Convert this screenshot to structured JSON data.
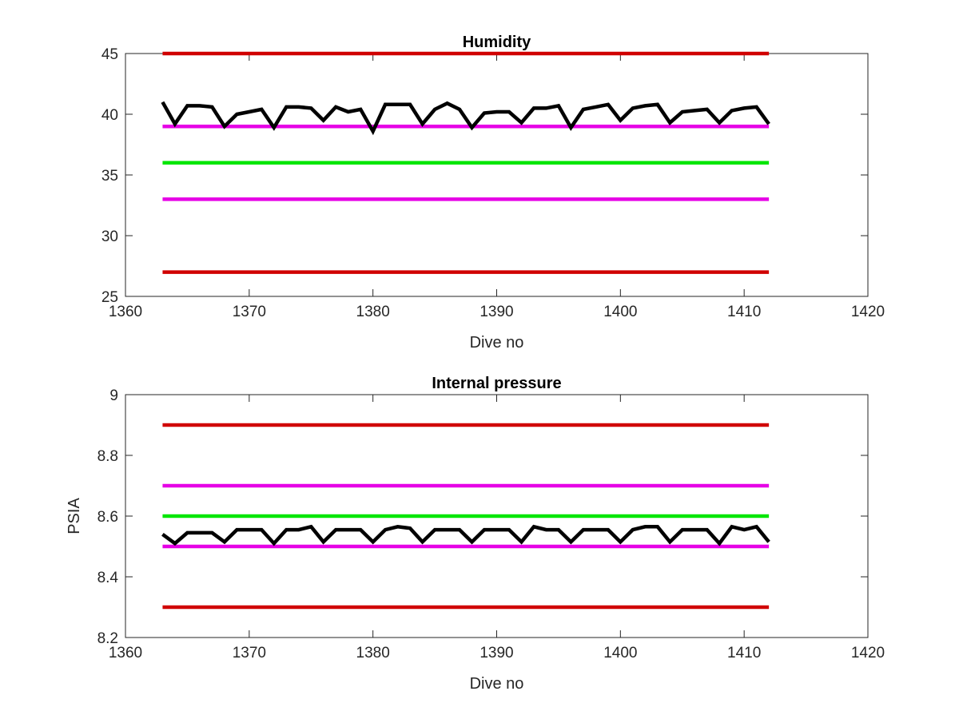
{
  "chart_data": [
    {
      "type": "line",
      "title": "Humidity",
      "xlabel": "Dive no",
      "ylabel": "",
      "xlim": [
        1360,
        1420
      ],
      "ylim": [
        25,
        45
      ],
      "xticks": [
        1360,
        1370,
        1380,
        1390,
        1400,
        1410,
        1420
      ],
      "yticks": [
        25,
        30,
        35,
        40,
        45
      ],
      "xtick_labels": [
        "1360",
        "1370",
        "1380",
        "1390",
        "1400",
        "1410",
        "1420"
      ],
      "ytick_labels": [
        "25",
        "30",
        "35",
        "40",
        "45"
      ],
      "grid": false,
      "reference_lines": [
        {
          "y": 45,
          "x": [
            1363,
            1412
          ],
          "color": "#d00000"
        },
        {
          "y": 39,
          "x": [
            1363,
            1412
          ],
          "color": "#e600e6"
        },
        {
          "y": 36,
          "x": [
            1363,
            1412
          ],
          "color": "#00e600"
        },
        {
          "y": 33,
          "x": [
            1363,
            1412
          ],
          "color": "#e600e6"
        },
        {
          "y": 27,
          "x": [
            1363,
            1412
          ],
          "color": "#d00000"
        }
      ],
      "series": [
        {
          "color": "#000000",
          "x": [
            1363,
            1364,
            1365,
            1366,
            1367,
            1368,
            1369,
            1370,
            1371,
            1372,
            1373,
            1374,
            1375,
            1376,
            1377,
            1378,
            1379,
            1380,
            1381,
            1382,
            1383,
            1384,
            1385,
            1386,
            1387,
            1388,
            1389,
            1390,
            1391,
            1392,
            1393,
            1394,
            1395,
            1396,
            1397,
            1398,
            1399,
            1400,
            1401,
            1402,
            1403,
            1404,
            1405,
            1406,
            1407,
            1408,
            1409,
            1410,
            1411,
            1412
          ],
          "y": [
            41.0,
            39.2,
            40.7,
            40.7,
            40.6,
            39.0,
            40.0,
            40.2,
            40.4,
            38.9,
            40.6,
            40.6,
            40.5,
            39.5,
            40.6,
            40.2,
            40.4,
            38.6,
            40.8,
            40.8,
            40.8,
            39.2,
            40.4,
            40.9,
            40.4,
            38.9,
            40.1,
            40.2,
            40.2,
            39.3,
            40.5,
            40.5,
            40.7,
            38.9,
            40.4,
            40.6,
            40.8,
            39.5,
            40.5,
            40.7,
            40.8,
            39.3,
            40.2,
            40.3,
            40.4,
            39.3,
            40.3,
            40.5,
            40.6,
            39.2
          ]
        }
      ]
    },
    {
      "type": "line",
      "title": "Internal pressure",
      "xlabel": "Dive no",
      "ylabel": "PSIA",
      "xlim": [
        1360,
        1420
      ],
      "ylim": [
        8.2,
        9.0
      ],
      "xticks": [
        1360,
        1370,
        1380,
        1390,
        1400,
        1410,
        1420
      ],
      "yticks": [
        8.2,
        8.4,
        8.6,
        8.8,
        9.0
      ],
      "xtick_labels": [
        "1360",
        "1370",
        "1380",
        "1390",
        "1400",
        "1410",
        "1420"
      ],
      "ytick_labels": [
        "8.2",
        "8.4",
        "8.6",
        "8.8",
        "9"
      ],
      "grid": false,
      "reference_lines": [
        {
          "y": 8.9,
          "x": [
            1363,
            1412
          ],
          "color": "#d00000"
        },
        {
          "y": 8.7,
          "x": [
            1363,
            1412
          ],
          "color": "#e600e6"
        },
        {
          "y": 8.6,
          "x": [
            1363,
            1412
          ],
          "color": "#00e600"
        },
        {
          "y": 8.5,
          "x": [
            1363,
            1412
          ],
          "color": "#e600e6"
        },
        {
          "y": 8.3,
          "x": [
            1363,
            1412
          ],
          "color": "#d00000"
        }
      ],
      "series": [
        {
          "color": "#000000",
          "x": [
            1363,
            1364,
            1365,
            1366,
            1367,
            1368,
            1369,
            1370,
            1371,
            1372,
            1373,
            1374,
            1375,
            1376,
            1377,
            1378,
            1379,
            1380,
            1381,
            1382,
            1383,
            1384,
            1385,
            1386,
            1387,
            1388,
            1389,
            1390,
            1391,
            1392,
            1393,
            1394,
            1395,
            1396,
            1397,
            1398,
            1399,
            1400,
            1401,
            1402,
            1403,
            1404,
            1405,
            1406,
            1407,
            1408,
            1409,
            1410,
            1411,
            1412
          ],
          "y": [
            8.54,
            8.51,
            8.545,
            8.545,
            8.545,
            8.515,
            8.555,
            8.555,
            8.555,
            8.51,
            8.555,
            8.555,
            8.565,
            8.515,
            8.555,
            8.555,
            8.555,
            8.515,
            8.555,
            8.565,
            8.56,
            8.515,
            8.555,
            8.555,
            8.555,
            8.515,
            8.555,
            8.555,
            8.555,
            8.515,
            8.565,
            8.555,
            8.555,
            8.515,
            8.555,
            8.555,
            8.555,
            8.515,
            8.555,
            8.565,
            8.565,
            8.515,
            8.555,
            8.555,
            8.555,
            8.51,
            8.565,
            8.555,
            8.565,
            8.515
          ]
        }
      ]
    }
  ]
}
